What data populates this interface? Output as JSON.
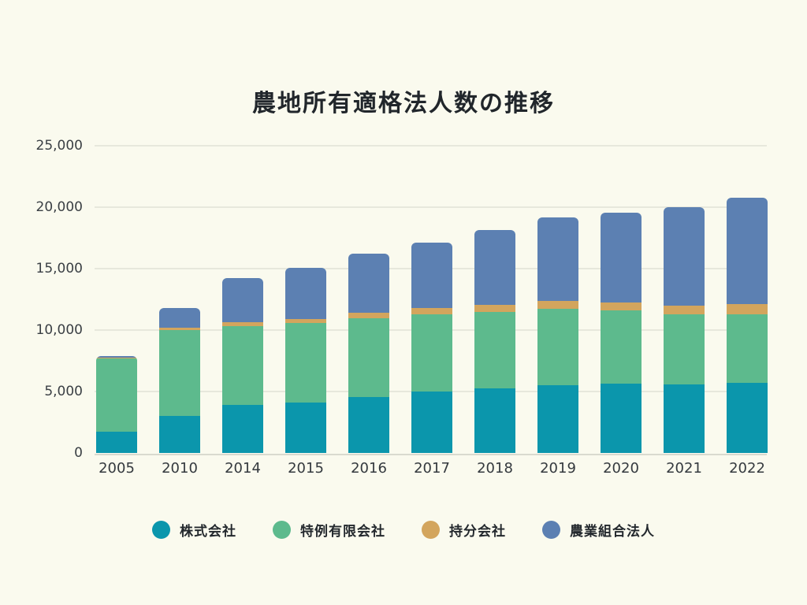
{
  "page": {
    "background": "#fafaee"
  },
  "colors": {
    "gridline": "#e7e8dc",
    "baseline": "#d9dacf",
    "title_text": "#21262b",
    "tick_text": "#3a3f44",
    "legend_text": "#23282d"
  },
  "chart_data": {
    "type": "bar",
    "stacked": true,
    "title": "農地所有適格法人数の推移",
    "categories": [
      "2005",
      "2010",
      "2014",
      "2015",
      "2016",
      "2017",
      "2018",
      "2019",
      "2020",
      "2021",
      "2022"
    ],
    "series": [
      {
        "name": "株式会社",
        "color": "#0b96ac",
        "values": [
          1750,
          3030,
          3890,
          4120,
          4550,
          4980,
          5240,
          5490,
          5620,
          5580,
          5720
        ]
      },
      {
        "name": "特例有限会社",
        "color": "#5dba8d",
        "values": [
          5950,
          6970,
          6430,
          6460,
          6410,
          6320,
          6220,
          6260,
          5980,
          5680,
          5560
        ]
      },
      {
        "name": "持分会社",
        "color": "#d3a55d",
        "values": [
          40,
          210,
          320,
          320,
          430,
          480,
          570,
          640,
          620,
          740,
          850
        ]
      },
      {
        "name": "農業組合法人",
        "color": "#5c80b2",
        "values": [
          160,
          1600,
          3610,
          4150,
          4810,
          5320,
          6130,
          6760,
          7330,
          8000,
          8620
        ]
      }
    ],
    "totals": [
      7900,
      11810,
      14250,
      15050,
      16200,
      17100,
      18160,
      19150,
      19550,
      20000,
      20750
    ],
    "xlabel": "",
    "ylabel": "",
    "ylim": [
      0,
      25000
    ],
    "y_ticks": [
      0,
      5000,
      10000,
      15000,
      20000,
      25000
    ],
    "y_tick_labels": [
      "0",
      "5,000",
      "10,000",
      "15,000",
      "20,000",
      "25,000"
    ],
    "grid": "horizontal",
    "legend_position": "bottom"
  }
}
